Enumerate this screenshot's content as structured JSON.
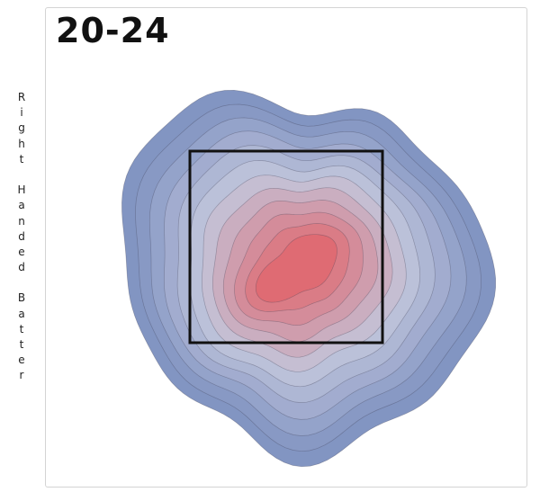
{
  "chart_data": {
    "type": "heatmap",
    "title": "20-24",
    "side_label": "Right Handed Batter",
    "levels": 12,
    "colors": {
      "low": "#7b8fbf",
      "mid": "#c2c6dc",
      "high": "#df6a72",
      "zone_outline": "#111111"
    },
    "grid": false
  }
}
